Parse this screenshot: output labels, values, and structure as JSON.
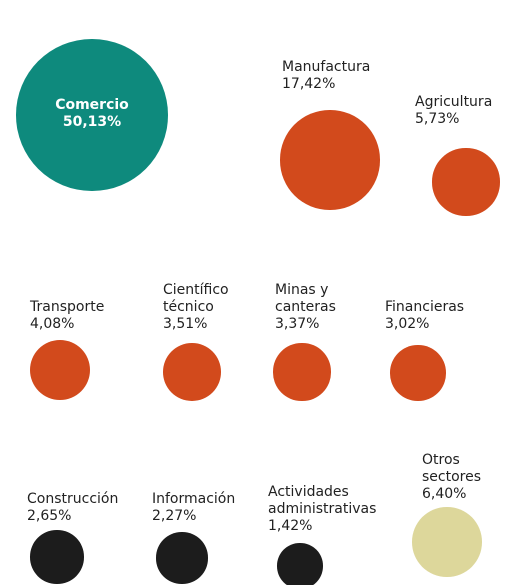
{
  "chart_data": {
    "type": "bubble",
    "categories": [
      "Comercio",
      "Manufactura",
      "Agricultura",
      "Transporte",
      "Científico técnico",
      "Minas y canteras",
      "Financieras",
      "Construcción",
      "Información",
      "Actividades administrativas",
      "Otros sectores"
    ],
    "values": [
      50.13,
      17.42,
      5.73,
      4.08,
      3.51,
      3.37,
      3.02,
      2.65,
      2.27,
      1.42,
      6.4
    ],
    "value_labels": [
      "50,13%",
      "17,42%",
      "5,73%",
      "4,08%",
      "3,51%",
      "3,37%",
      "3,02%",
      "2,65%",
      "2,27%",
      "1,42%",
      "6,40%"
    ],
    "colors": [
      "#0e8a7d",
      "#d24a1c",
      "#d24a1c",
      "#d24a1c",
      "#d24a1c",
      "#d24a1c",
      "#d24a1c",
      "#1c1c1c",
      "#1c1c1c",
      "#1c1c1c",
      "#ddd79b"
    ]
  }
}
